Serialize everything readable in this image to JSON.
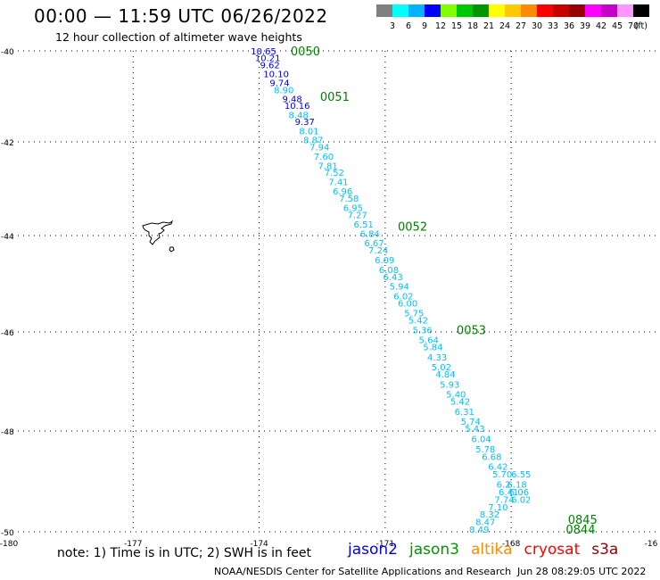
{
  "header": {
    "title": "00:00 — 11:59 UTC 06/26/2022",
    "subtitle": "12 hour collection of altimeter wave heights"
  },
  "legend": {
    "colors": [
      "#808080",
      "#00ffff",
      "#00b4ff",
      "#0000ff",
      "#80ff00",
      "#00c800",
      "#009600",
      "#ffff00",
      "#ffc800",
      "#ff8c00",
      "#ff0000",
      "#c80000",
      "#960000",
      "#ff00ff",
      "#c800c8",
      "#ff96ff",
      "#000000"
    ],
    "labels": [
      "3",
      "6",
      "9",
      "12",
      "15",
      "18",
      "21",
      "24",
      "27",
      "30",
      "33",
      "36",
      "39",
      "42",
      "45",
      "70"
    ],
    "unit": "(ft)"
  },
  "map": {
    "lat_labels": [
      "-40",
      "-42",
      "-44",
      "-46",
      "-48",
      "-50"
    ],
    "lon_labels": [
      "-180",
      "-177",
      "-174",
      "-171",
      "-168",
      "-16"
    ],
    "right_edge_label": "-16"
  },
  "track": {
    "times": [
      {
        "label": "0050",
        "lat": -39.95,
        "lon": -173.25
      },
      {
        "label": "0051",
        "lat": -41.0,
        "lon": -172.55
      },
      {
        "label": "0052",
        "lat": -43.8,
        "lon": -170.7
      },
      {
        "label": "0053",
        "lat": -45.95,
        "lon": -169.3
      },
      {
        "label": "0845",
        "lat": -49.75,
        "lon": -166.65
      },
      {
        "label": "0844",
        "lat": -49.95,
        "lon": -166.7
      }
    ],
    "points": [
      {
        "v": "10.65",
        "lat": -39.95,
        "lon": -174.2
      },
      {
        "v": "10.21",
        "lat": -40.15,
        "lon": -174.1
      },
      {
        "v": "9.62",
        "lat": -40.3,
        "lon": -173.98
      },
      {
        "v": "10.10",
        "lat": -40.5,
        "lon": -173.9
      },
      {
        "v": "9.74",
        "lat": -40.7,
        "lon": -173.75
      },
      {
        "v": "8.90",
        "lat": -40.85,
        "lon": -173.65
      },
      {
        "v": "9.48",
        "lat": -41.05,
        "lon": -173.45
      },
      {
        "v": "10.16",
        "lat": -41.2,
        "lon": -173.4
      },
      {
        "v": "8.48",
        "lat": -41.4,
        "lon": -173.3
      },
      {
        "v": "9.37",
        "lat": -41.55,
        "lon": -173.15
      },
      {
        "v": "8.01",
        "lat": -41.75,
        "lon": -173.05
      },
      {
        "v": "8.87",
        "lat": -41.95,
        "lon": -172.95
      },
      {
        "v": "7.94",
        "lat": -42.1,
        "lon": -172.8
      },
      {
        "v": "7.60",
        "lat": -42.3,
        "lon": -172.7
      },
      {
        "v": "7.81",
        "lat": -42.5,
        "lon": -172.6
      },
      {
        "v": "7.52",
        "lat": -42.65,
        "lon": -172.45
      },
      {
        "v": "7.41",
        "lat": -42.85,
        "lon": -172.35
      },
      {
        "v": "6.96",
        "lat": -43.05,
        "lon": -172.25
      },
      {
        "v": "7.58",
        "lat": -43.2,
        "lon": -172.1
      },
      {
        "v": "6.95",
        "lat": -43.4,
        "lon": -172.0
      },
      {
        "v": "7.27",
        "lat": -43.55,
        "lon": -171.9
      },
      {
        "v": "6.51",
        "lat": -43.75,
        "lon": -171.75
      },
      {
        "v": "6.84",
        "lat": -43.95,
        "lon": -171.6
      },
      {
        "v": "6.67",
        "lat": -44.15,
        "lon": -171.5
      },
      {
        "v": "7.24",
        "lat": -44.3,
        "lon": -171.4
      },
      {
        "v": "6.09",
        "lat": -44.5,
        "lon": -171.25
      },
      {
        "v": "6.08",
        "lat": -44.7,
        "lon": -171.15
      },
      {
        "v": "6.43",
        "lat": -44.85,
        "lon": -171.05
      },
      {
        "v": "5.94",
        "lat": -45.05,
        "lon": -170.9
      },
      {
        "v": "6.02",
        "lat": -45.25,
        "lon": -170.8
      },
      {
        "v": "6.00",
        "lat": -45.4,
        "lon": -170.7
      },
      {
        "v": "5.75",
        "lat": -45.6,
        "lon": -170.55
      },
      {
        "v": "5.42",
        "lat": -45.75,
        "lon": -170.45
      },
      {
        "v": "5.36",
        "lat": -45.95,
        "lon": -170.35
      },
      {
        "v": "5.64",
        "lat": -46.15,
        "lon": -170.2
      },
      {
        "v": "5.84",
        "lat": -46.3,
        "lon": -170.1
      },
      {
        "v": "4.33",
        "lat": -46.5,
        "lon": -170.0
      },
      {
        "v": "5.02",
        "lat": -46.7,
        "lon": -169.9
      },
      {
        "v": "4.84",
        "lat": -46.85,
        "lon": -169.8
      },
      {
        "v": "5.93",
        "lat": -47.05,
        "lon": -169.7
      },
      {
        "v": "5.40",
        "lat": -47.25,
        "lon": -169.55
      },
      {
        "v": "5.42",
        "lat": -47.4,
        "lon": -169.45
      },
      {
        "v": "6.31",
        "lat": -47.6,
        "lon": -169.35
      },
      {
        "v": "5.74",
        "lat": -47.8,
        "lon": -169.2
      },
      {
        "v": "5.43",
        "lat": -47.95,
        "lon": -169.1
      },
      {
        "v": "6.04",
        "lat": -48.15,
        "lon": -168.95
      },
      {
        "v": "5.78",
        "lat": -48.35,
        "lon": -168.85
      },
      {
        "v": "6.68",
        "lat": -48.5,
        "lon": -168.7
      },
      {
        "v": "6.42",
        "lat": -48.7,
        "lon": -168.55
      },
      {
        "v": "5.70",
        "lat": -48.85,
        "lon": -168.45
      },
      {
        "v": "6.55",
        "lat": -48.85,
        "lon": -168.0
      },
      {
        "v": "6.2",
        "lat": -49.05,
        "lon": -168.35
      },
      {
        "v": "6.18",
        "lat": -49.05,
        "lon": -168.1
      },
      {
        "v": "6.41",
        "lat": -49.2,
        "lon": -168.3
      },
      {
        "v": "6.06",
        "lat": -49.2,
        "lon": -168.05
      },
      {
        "v": "7.74",
        "lat": -49.35,
        "lon": -168.4
      },
      {
        "v": "6.02",
        "lat": -49.35,
        "lon": -168.0
      },
      {
        "v": "7.10",
        "lat": -49.5,
        "lon": -168.55
      },
      {
        "v": "8.32",
        "lat": -49.65,
        "lon": -168.75
      },
      {
        "v": "8.47",
        "lat": -49.8,
        "lon": -168.85
      },
      {
        "v": "8.49",
        "lat": -49.95,
        "lon": -169.0
      }
    ]
  },
  "footer": {
    "note": "note:  1) Time is in UTC;  2) SWH is in feet",
    "satellites": [
      {
        "name": "jason2",
        "color": "#0000ff"
      },
      {
        "name": "jason3",
        "color": "#009600"
      },
      {
        "name": "altika",
        "color": "#ff8c00"
      },
      {
        "name": "cryosat",
        "color": "#ff0000"
      },
      {
        "name": "s3a",
        "color": "#960000"
      }
    ],
    "credit": "NOAA/NESDIS Center for Satellite Applications and Research",
    "generated": "Jun 28 08:29:05 UTC 2022"
  }
}
